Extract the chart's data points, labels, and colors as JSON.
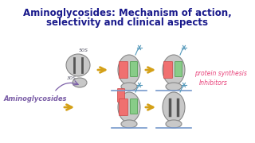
{
  "title_line1": "Aminoglycosides: Mechanism of action,",
  "title_line2": "selectivity and clinical aspects",
  "title_color": "#1a1a8c",
  "title_fontsize": 8.5,
  "bg_color": "#ffffff",
  "aminoglycosides_label": "Aminoglycosides",
  "aminoglycosides_color": "#7b5ea7",
  "protein_synth_label1": "protein synthesis",
  "protein_synth_label2": "Inhibitors",
  "protein_synth_color": "#e8427a",
  "arrow_color": "#d4a017",
  "label_50s": "50S",
  "label_30s": "30S",
  "ribosome_fill": "#c8c8c8",
  "ribosome_edge": "#888888",
  "mrna_color": "#7799cc",
  "pink_color": "#f07070",
  "green_color": "#88cc88",
  "star_color": "#5599bb",
  "bar_color": "#555555"
}
